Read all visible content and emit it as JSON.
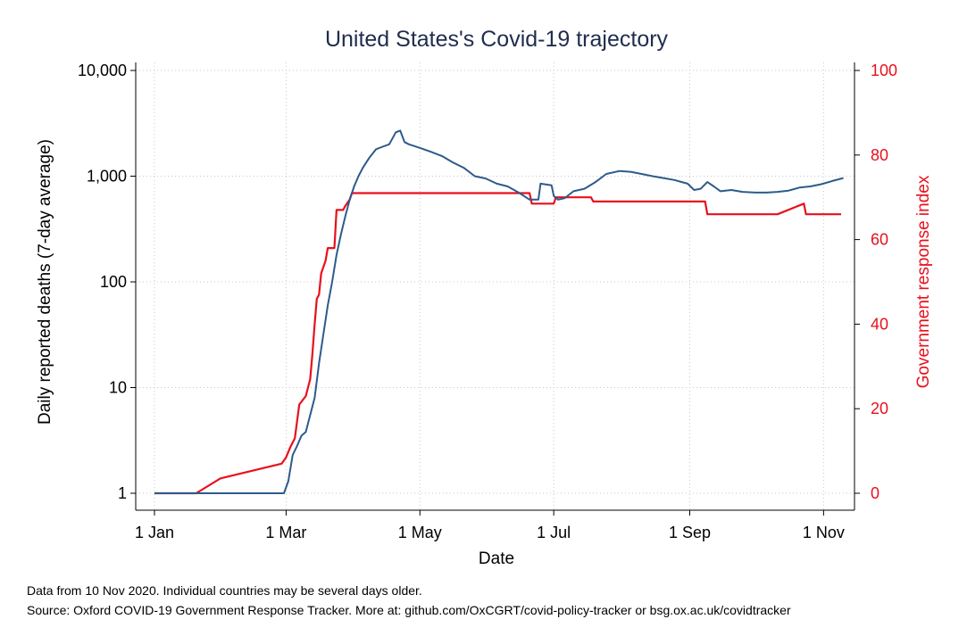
{
  "chart_data": {
    "type": "line",
    "title": "United States's Covid-19 trajectory",
    "xlabel": "Date",
    "ylabel": "Daily reported deaths (7-day average)",
    "y2label": "Government response index",
    "x_tick_labels": [
      "1 Jan",
      "1 Mar",
      "1 May",
      "1 Jul",
      "1 Sep",
      "1 Nov"
    ],
    "x_tick_days": [
      0,
      60,
      121,
      182,
      244,
      305
    ],
    "y_scale": "log",
    "ylim": [
      1,
      10000
    ],
    "y_tick_values": [
      1,
      10,
      100,
      1000,
      10000
    ],
    "y_tick_labels": [
      "1",
      "10",
      "100",
      "1,000",
      "10,000"
    ],
    "y2lim": [
      0,
      100
    ],
    "y2_tick_values": [
      0,
      20,
      40,
      60,
      80,
      100
    ],
    "y2_tick_labels": [
      "0",
      "20",
      "40",
      "60",
      "80",
      "100"
    ],
    "grid": true,
    "notes": [
      "Data from 10 Nov 2020. Individual countries may be several days older.",
      "Source: Oxford COVID-19 Government Response Tracker. More at: github.com/OxCGRT/covid-policy-tracker or bsg.ox.ac.uk/covidtracker"
    ],
    "series": [
      {
        "axis": "left",
        "color": "#2d5b8a",
        "x": [
          "2020-01-01",
          "2020-02-29",
          "2020-03-02",
          "2020-03-04",
          "2020-03-06",
          "2020-03-08",
          "2020-03-10",
          "2020-03-12",
          "2020-03-14",
          "2020-03-16",
          "2020-03-18",
          "2020-03-20",
          "2020-03-22",
          "2020-03-24",
          "2020-03-26",
          "2020-03-28",
          "2020-03-30",
          "2020-04-01",
          "2020-04-03",
          "2020-04-05",
          "2020-04-08",
          "2020-04-11",
          "2020-04-14",
          "2020-04-17",
          "2020-04-20",
          "2020-04-22",
          "2020-04-24",
          "2020-04-26",
          "2020-05-01",
          "2020-05-06",
          "2020-05-11",
          "2020-05-16",
          "2020-05-21",
          "2020-05-26",
          "2020-05-31",
          "2020-06-05",
          "2020-06-10",
          "2020-06-15",
          "2020-06-20",
          "2020-06-24",
          "2020-06-25",
          "2020-06-30",
          "2020-07-01",
          "2020-07-03",
          "2020-07-06",
          "2020-07-10",
          "2020-07-15",
          "2020-07-20",
          "2020-07-25",
          "2020-07-31",
          "2020-08-05",
          "2020-08-10",
          "2020-08-15",
          "2020-08-20",
          "2020-08-25",
          "2020-08-31",
          "2020-09-03",
          "2020-09-06",
          "2020-09-09",
          "2020-09-12",
          "2020-09-15",
          "2020-09-20",
          "2020-09-25",
          "2020-10-01",
          "2020-10-06",
          "2020-10-11",
          "2020-10-16",
          "2020-10-21",
          "2020-10-26",
          "2020-10-31",
          "2020-11-05",
          "2020-11-10"
        ],
        "values": [
          1,
          1,
          1.3,
          2.3,
          2.8,
          3.5,
          3.8,
          5.5,
          8,
          17,
          32,
          60,
          100,
          180,
          280,
          420,
          600,
          800,
          1000,
          1200,
          1500,
          1800,
          1900,
          2000,
          2600,
          2700,
          2100,
          2000,
          1850,
          1700,
          1550,
          1350,
          1200,
          1000,
          950,
          850,
          800,
          700,
          600,
          600,
          850,
          820,
          650,
          600,
          620,
          720,
          760,
          880,
          1050,
          1120,
          1100,
          1050,
          1000,
          960,
          920,
          850,
          740,
          760,
          880,
          800,
          720,
          740,
          710,
          700,
          700,
          710,
          730,
          780,
          800,
          840,
          900,
          960
        ]
      },
      {
        "axis": "right",
        "color": "#e8101c",
        "x": [
          "2020-01-01",
          "2020-01-20",
          "2020-01-31",
          "2020-02-28",
          "2020-03-01",
          "2020-03-03",
          "2020-03-05",
          "2020-03-07",
          "2020-03-10",
          "2020-03-12",
          "2020-03-13",
          "2020-03-14",
          "2020-03-15",
          "2020-03-16",
          "2020-03-17",
          "2020-03-19",
          "2020-03-20",
          "2020-03-23",
          "2020-03-24",
          "2020-03-27",
          "2020-03-28",
          "2020-03-30",
          "2020-03-31",
          "2020-06-20",
          "2020-06-21",
          "2020-07-01",
          "2020-07-02",
          "2020-07-18",
          "2020-07-19",
          "2020-09-08",
          "2020-09-09",
          "2020-10-10",
          "2020-10-11",
          "2020-10-23",
          "2020-10-24",
          "2020-11-09"
        ],
        "values": [
          0,
          0,
          3.5,
          7,
          8.5,
          11,
          13,
          21,
          23,
          27,
          33,
          40,
          46,
          47,
          52,
          55,
          58,
          58,
          67,
          67,
          68,
          69.5,
          71,
          71,
          68.5,
          68.5,
          70,
          70,
          69,
          69,
          66,
          66,
          66,
          68.5,
          66,
          66
        ]
      }
    ]
  }
}
